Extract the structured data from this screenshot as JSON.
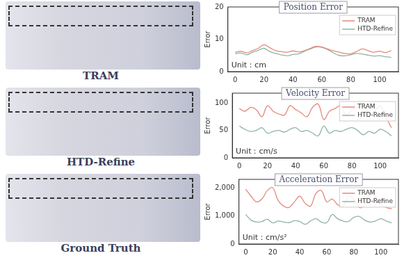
{
  "panels": [
    "TRAM",
    "HTD-Refine",
    "Ground Truth"
  ],
  "chart_data": [
    {
      "type": "line",
      "title": "Position Error",
      "y_label": "Error",
      "annotation": "Unit：cm",
      "x": [
        0,
        4,
        8,
        12,
        16,
        20,
        24,
        28,
        32,
        36,
        40,
        44,
        48,
        52,
        56,
        60,
        64,
        68,
        72,
        76,
        80,
        84,
        88,
        92,
        96,
        100,
        104,
        108
      ],
      "xlim": [
        -5,
        113
      ],
      "xticks": [
        0,
        20,
        40,
        60,
        80,
        100
      ],
      "ylim": [
        0,
        20
      ],
      "yticks": [
        0,
        10,
        20
      ],
      "grid": false,
      "legend": "upper right",
      "series": [
        {
          "name": "TRAM",
          "color": "#e5897c",
          "values": [
            6.0,
            6.3,
            5.8,
            6.5,
            7.2,
            8.3,
            7.4,
            6.5,
            6.2,
            6.0,
            6.4,
            6.1,
            6.5,
            7.2,
            7.8,
            7.6,
            7.0,
            6.4,
            6.0,
            5.6,
            5.5,
            6.2,
            7.0,
            6.5,
            6.0,
            6.3,
            5.9,
            6.5
          ]
        },
        {
          "name": "HTD-Refine",
          "color": "#8fb5a2",
          "values": [
            5.5,
            5.8,
            5.2,
            6.0,
            6.6,
            7.2,
            6.2,
            5.6,
            5.2,
            4.9,
            5.3,
            5.5,
            6.3,
            7.0,
            7.6,
            7.5,
            6.8,
            5.8,
            5.0,
            4.9,
            5.2,
            5.6,
            5.4,
            5.1,
            4.8,
            4.9,
            4.6,
            4.4
          ]
        }
      ]
    },
    {
      "type": "line",
      "title": "Velocity Error",
      "y_label": "Error",
      "annotation": "Unit：cm/s",
      "x": [
        0,
        4,
        8,
        12,
        16,
        20,
        24,
        28,
        32,
        36,
        40,
        44,
        48,
        52,
        56,
        60,
        64,
        68,
        72,
        76,
        80,
        84,
        88,
        92,
        96,
        100,
        104,
        108
      ],
      "xlim": [
        -5,
        113
      ],
      "xticks": [
        0,
        20,
        40,
        60,
        80,
        100
      ],
      "ylim": [
        0,
        118
      ],
      "yticks": [
        0,
        50,
        100
      ],
      "grid": false,
      "legend": "upper right",
      "series": [
        {
          "name": "TRAM",
          "color": "#e5897c",
          "values": [
            90,
            85,
            92,
            88,
            75,
            95,
            85,
            80,
            78,
            95,
            88,
            82,
            75,
            92,
            98,
            70,
            85,
            90,
            95,
            78,
            88,
            92,
            100,
            80,
            85,
            95,
            75,
            55
          ]
        },
        {
          "name": "HTD-Refine",
          "color": "#8fb5a2",
          "values": [
            58,
            52,
            48,
            50,
            55,
            45,
            48,
            50,
            47,
            52,
            55,
            48,
            50,
            45,
            40,
            58,
            45,
            50,
            48,
            52,
            55,
            50,
            42,
            48,
            45,
            52,
            48,
            40
          ]
        }
      ]
    },
    {
      "type": "line",
      "title": "Acceleration Error",
      "y_label": "Error",
      "annotation": "Unit：cm/s²",
      "x": [
        0,
        4,
        8,
        12,
        16,
        20,
        24,
        28,
        32,
        36,
        40,
        44,
        48,
        52,
        56,
        60,
        64,
        68,
        72,
        76,
        80,
        84,
        88,
        92,
        96,
        100,
        104,
        108
      ],
      "xlim": [
        -5,
        113
      ],
      "xticks": [
        0,
        20,
        40,
        60,
        80,
        100
      ],
      "ylim": [
        0,
        2300
      ],
      "yticks": [
        0,
        1000,
        2000
      ],
      "grid": false,
      "legend": "upper right",
      "series": [
        {
          "name": "TRAM",
          "color": "#e5897c",
          "values": [
            1950,
            1700,
            1500,
            1600,
            1900,
            2000,
            1550,
            1350,
            1300,
            1500,
            1700,
            1450,
            1350,
            1800,
            1900,
            1500,
            1600,
            1400,
            1350,
            1700,
            1600,
            1300,
            1400,
            1800,
            1700,
            1400,
            1300,
            1250
          ]
        },
        {
          "name": "HTD-Refine",
          "color": "#8fb5a2",
          "values": [
            1050,
            850,
            780,
            800,
            880,
            750,
            820,
            780,
            760,
            830,
            800,
            700,
            820,
            900,
            780,
            760,
            1050,
            900,
            820,
            800,
            950,
            980,
            850,
            780,
            820,
            900,
            820,
            750
          ]
        }
      ]
    }
  ]
}
